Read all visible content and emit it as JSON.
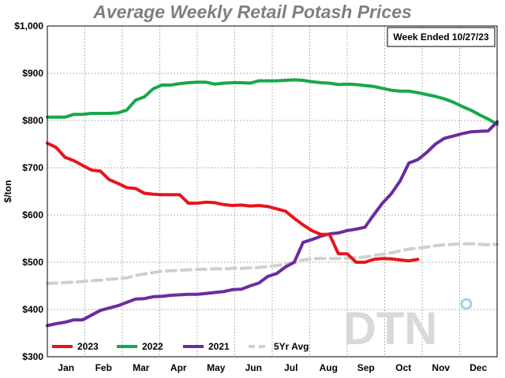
{
  "chart_data": {
    "type": "line",
    "title": "Average Weekly Retail Potash Prices",
    "annotation": "Week Ended 10/27/23",
    "ylabel": "$/ton",
    "xlabel": "",
    "ylim": [
      300,
      1000
    ],
    "y_ticks": [
      300,
      400,
      500,
      600,
      700,
      800,
      900,
      1000
    ],
    "y_tick_labels": [
      "$300",
      "$400",
      "$500",
      "$600",
      "$700",
      "$800",
      "$900",
      "$1,000"
    ],
    "x_ticks": [
      "Jan",
      "Feb",
      "Mar",
      "Apr",
      "May",
      "Jun",
      "Jul",
      "Aug",
      "Sep",
      "Oct",
      "Nov",
      "Dec"
    ],
    "x_unit": "week of year",
    "grid": true,
    "legend_position": "bottom-left",
    "watermark": "DTN",
    "series": [
      {
        "name": "2023",
        "color": "#e8141b",
        "dashed": false,
        "x": [
          1,
          2,
          3,
          4,
          5,
          6,
          7,
          8,
          9,
          10,
          11,
          12,
          13,
          14,
          15,
          16,
          17,
          18,
          19,
          20,
          21,
          22,
          23,
          24,
          25,
          26,
          27,
          28,
          29,
          30,
          31,
          32,
          33,
          34,
          35,
          36,
          37,
          38,
          39,
          40,
          41,
          42,
          43
        ],
        "values": [
          752,
          743,
          722,
          715,
          705,
          695,
          693,
          675,
          667,
          658,
          656,
          646,
          644,
          643,
          643,
          643,
          625,
          625,
          627,
          626,
          622,
          620,
          621,
          619,
          620,
          618,
          613,
          608,
          593,
          579,
          567,
          559,
          559,
          518,
          518,
          500,
          500,
          506,
          508,
          507,
          505,
          503,
          506
        ]
      },
      {
        "name": "2022",
        "color": "#16a84a",
        "dashed": false,
        "x": [
          1,
          2,
          3,
          4,
          5,
          6,
          7,
          8,
          9,
          10,
          11,
          12,
          13,
          14,
          15,
          16,
          17,
          18,
          19,
          20,
          21,
          22,
          23,
          24,
          25,
          26,
          27,
          28,
          29,
          30,
          31,
          32,
          33,
          34,
          35,
          36,
          37,
          38,
          39,
          40,
          41,
          42,
          43,
          44,
          45,
          46,
          47,
          48,
          49,
          50,
          51,
          52
        ],
        "values": [
          807,
          807,
          807,
          813,
          813,
          815,
          815,
          815,
          816,
          822,
          843,
          850,
          867,
          875,
          875,
          878,
          880,
          881,
          881,
          877,
          879,
          880,
          880,
          879,
          884,
          884,
          884,
          885,
          886,
          885,
          882,
          880,
          879,
          876,
          877,
          876,
          874,
          872,
          868,
          864,
          862,
          862,
          859,
          855,
          851,
          846,
          839,
          830,
          822,
          812,
          803,
          792
        ]
      },
      {
        "name": "2021",
        "color": "#6b2c9e",
        "dashed": false,
        "x": [
          1,
          2,
          3,
          4,
          5,
          6,
          7,
          8,
          9,
          10,
          11,
          12,
          13,
          14,
          15,
          16,
          17,
          18,
          19,
          20,
          21,
          22,
          23,
          24,
          25,
          26,
          27,
          28,
          29,
          30,
          31,
          32,
          33,
          34,
          35,
          36,
          37,
          38,
          39,
          40,
          41,
          42,
          43,
          44,
          45,
          46,
          47,
          48,
          49,
          50,
          51,
          52
        ],
        "values": [
          366,
          370,
          373,
          378,
          378,
          388,
          398,
          403,
          408,
          415,
          422,
          423,
          427,
          428,
          430,
          431,
          432,
          432,
          434,
          436,
          438,
          442,
          443,
          450,
          456,
          470,
          476,
          490,
          500,
          542,
          548,
          555,
          560,
          562,
          567,
          570,
          574,
          600,
          625,
          645,
          672,
          710,
          717,
          732,
          750,
          762,
          767,
          772,
          776,
          777,
          778,
          797
        ]
      },
      {
        "name": "5Yr Avg",
        "color": "#cfcfcf",
        "dashed": true,
        "x": [
          1,
          2,
          3,
          4,
          5,
          6,
          7,
          8,
          9,
          10,
          11,
          12,
          13,
          14,
          15,
          16,
          17,
          18,
          19,
          20,
          21,
          22,
          23,
          24,
          25,
          26,
          27,
          28,
          29,
          30,
          31,
          32,
          33,
          34,
          35,
          36,
          37,
          38,
          39,
          40,
          41,
          42,
          43,
          44,
          45,
          46,
          47,
          48,
          49,
          50,
          51,
          52
        ],
        "values": [
          455,
          456,
          457,
          458,
          459,
          461,
          462,
          464,
          465,
          467,
          472,
          475,
          478,
          481,
          482,
          483,
          484,
          485,
          485,
          486,
          486,
          487,
          487,
          488,
          489,
          491,
          493,
          496,
          499,
          505,
          507,
          508,
          508,
          508,
          509,
          510,
          511,
          514,
          517,
          520,
          524,
          528,
          530,
          532,
          535,
          537,
          538,
          539,
          539,
          538,
          537,
          538
        ]
      }
    ]
  }
}
